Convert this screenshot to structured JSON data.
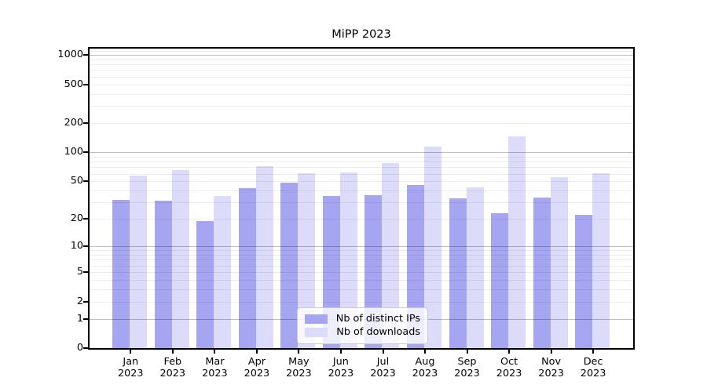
{
  "title": "MiPP 2023",
  "chart_data": {
    "type": "bar",
    "title": "MiPP 2023",
    "categories": [
      "Jan",
      "Feb",
      "Mar",
      "Apr",
      "May",
      "Jun",
      "Jul",
      "Aug",
      "Sep",
      "Oct",
      "Nov",
      "Dec"
    ],
    "category_year": "2023",
    "series": [
      {
        "name": "Nb of distinct IPs",
        "color": "#a5a5f1",
        "values": [
          32,
          31,
          19,
          42,
          48,
          35,
          36,
          46,
          33,
          23,
          34,
          22
        ]
      },
      {
        "name": "Nb of downloads",
        "color": "#dcdcfa",
        "values": [
          57,
          65,
          35,
          72,
          60,
          62,
          77,
          114,
          43,
          145,
          55,
          60
        ]
      }
    ],
    "yaxis": {
      "scale": "log10(value+1)",
      "range": [
        0,
        1100
      ],
      "tick_values": [
        0,
        1,
        2,
        5,
        10,
        20,
        50,
        100,
        200,
        500,
        1000
      ],
      "tick_labels": [
        "0",
        "1",
        "2",
        "5",
        "10",
        "20",
        "50",
        "100",
        "200",
        "500",
        "1000"
      ],
      "major_gridlines": [
        1,
        10,
        100,
        1000
      ],
      "minor_gridlines": [
        2,
        3,
        4,
        5,
        6,
        7,
        8,
        9,
        20,
        30,
        40,
        50,
        60,
        70,
        80,
        90,
        200,
        300,
        400,
        500,
        600,
        700,
        800,
        900,
        1100
      ]
    },
    "legend": {
      "position": "lower center",
      "items": [
        "Nb of distinct IPs",
        "Nb of downloads"
      ]
    },
    "grid": true
  },
  "colors": {
    "bar_distinct_ips": "#a5a5f1",
    "bar_downloads": "#dcdcfa",
    "major_grid": "rgba(0,0,0,0.25)",
    "minor_grid": "rgba(0,0,0,0.07)",
    "axis": "#000000",
    "legend_border": "#cccccc"
  }
}
